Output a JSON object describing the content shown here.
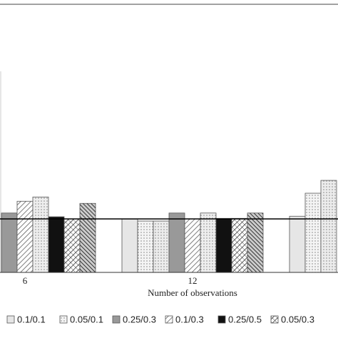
{
  "chart_data": {
    "type": "bar",
    "x_label": "Number of observations",
    "categories": [
      "6",
      "12",
      null
    ],
    "series": [
      {
        "name": "0.1/0.1",
        "color": "#e6e6e6",
        "pattern": "plain",
        "values": [
          null,
          1.0,
          1.05
        ]
      },
      {
        "name": "0.05/0.1",
        "color": "#f4f4f4",
        "pattern": "dots",
        "values": [
          null,
          0.96,
          1.48
        ]
      },
      {
        "color": "#ececec",
        "pattern": "dots",
        "values": [
          null,
          0.96,
          1.72
        ]
      },
      {
        "name": "0.25/0.3",
        "color": "#999999",
        "pattern": "plain",
        "values": [
          1.11,
          1.11,
          null
        ]
      },
      {
        "name": "0.1/0.3",
        "color": "#ffffff",
        "pattern": "diag",
        "values": [
          1.33,
          1.0,
          null
        ]
      },
      {
        "color": "#eeeeee",
        "pattern": "dots",
        "values": [
          1.41,
          1.11,
          null
        ]
      },
      {
        "name": "0.25/0.5",
        "color": "#111111",
        "pattern": "plain",
        "values": [
          1.04,
          1.01,
          null
        ]
      },
      {
        "name": "0.05/0.3",
        "color": "#ffffff",
        "pattern": "cross",
        "values": [
          1.0,
          1.01,
          null
        ]
      },
      {
        "color": "#cccccc",
        "pattern": "darkdiag",
        "values": [
          1.29,
          1.11,
          null
        ]
      }
    ],
    "reference_line": 1,
    "ylim": [
      0,
      5
    ]
  }
}
